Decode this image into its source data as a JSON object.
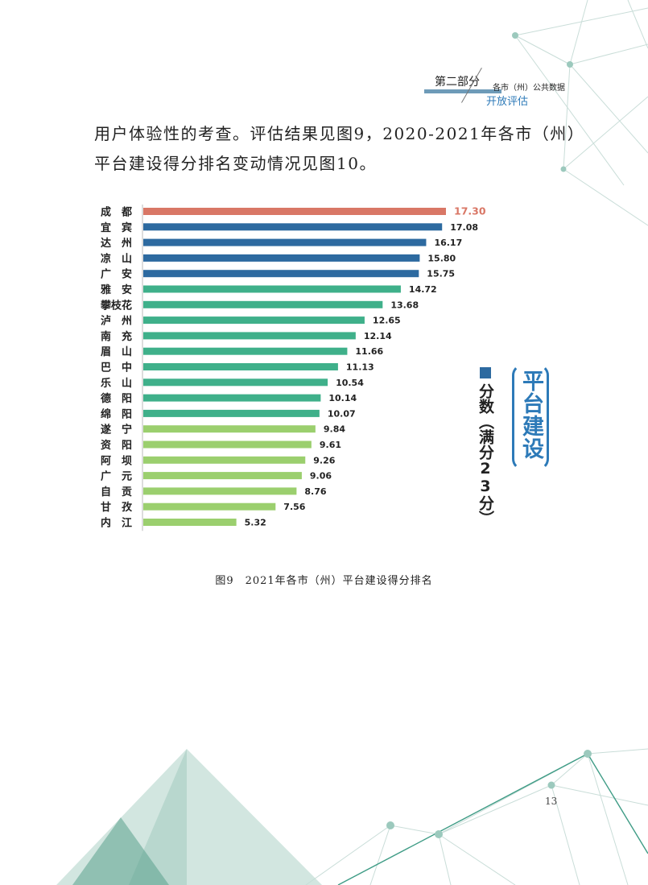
{
  "header": {
    "part": "第二部分",
    "subtitle": "各市（州）公共数据",
    "section": "开放评估"
  },
  "body_text": {
    "line1": "用户体验性的考查。评估结果见图9，2020-2021年各市（州）",
    "line2": "平台建设得分排名变动情况见图10。"
  },
  "side_title": "平台建设",
  "legend_label": "分数（满分23分）",
  "caption": "图9　2021年各市（州）平台建设得分排名",
  "page_number": "13",
  "colors": {
    "highlight": "#d97766",
    "blue": "#2d6aa0",
    "teal": "#3fb08a",
    "light_green": "#9bcf6e",
    "accent_blue": "#2d7ab8"
  },
  "chart_data": {
    "type": "bar",
    "orientation": "horizontal",
    "categories": [
      "成　都",
      "宜　宾",
      "达　州",
      "凉　山",
      "广　安",
      "雅　安",
      "攀枝花",
      "泸　州",
      "南　充",
      "眉　山",
      "巴　中",
      "乐　山",
      "德　阳",
      "绵　阳",
      "遂　宁",
      "资　阳",
      "阿　坝",
      "广　元",
      "自　贡",
      "甘　孜",
      "内　江"
    ],
    "values": [
      17.3,
      17.08,
      16.17,
      15.8,
      15.75,
      14.72,
      13.68,
      12.65,
      12.14,
      11.66,
      11.13,
      10.54,
      10.14,
      10.07,
      9.84,
      9.61,
      9.26,
      9.06,
      8.76,
      7.56,
      5.32
    ],
    "value_labels": [
      "17.30",
      "17.08",
      "16.17",
      "15.80",
      "15.75",
      "14.72",
      "13.68",
      "12.65",
      "12.14",
      "11.66",
      "11.13",
      "10.54",
      "10.14",
      "10.07",
      "9.84",
      "9.61",
      "9.26",
      "9.06",
      "8.76",
      "7.56",
      "5.32"
    ],
    "color_groups": [
      "highlight",
      "blue",
      "blue",
      "blue",
      "blue",
      "teal",
      "teal",
      "teal",
      "teal",
      "teal",
      "teal",
      "teal",
      "teal",
      "teal",
      "light_green",
      "light_green",
      "light_green",
      "light_green",
      "light_green",
      "light_green",
      "light_green"
    ],
    "xlim": [
      0,
      23
    ],
    "grid": false
  }
}
